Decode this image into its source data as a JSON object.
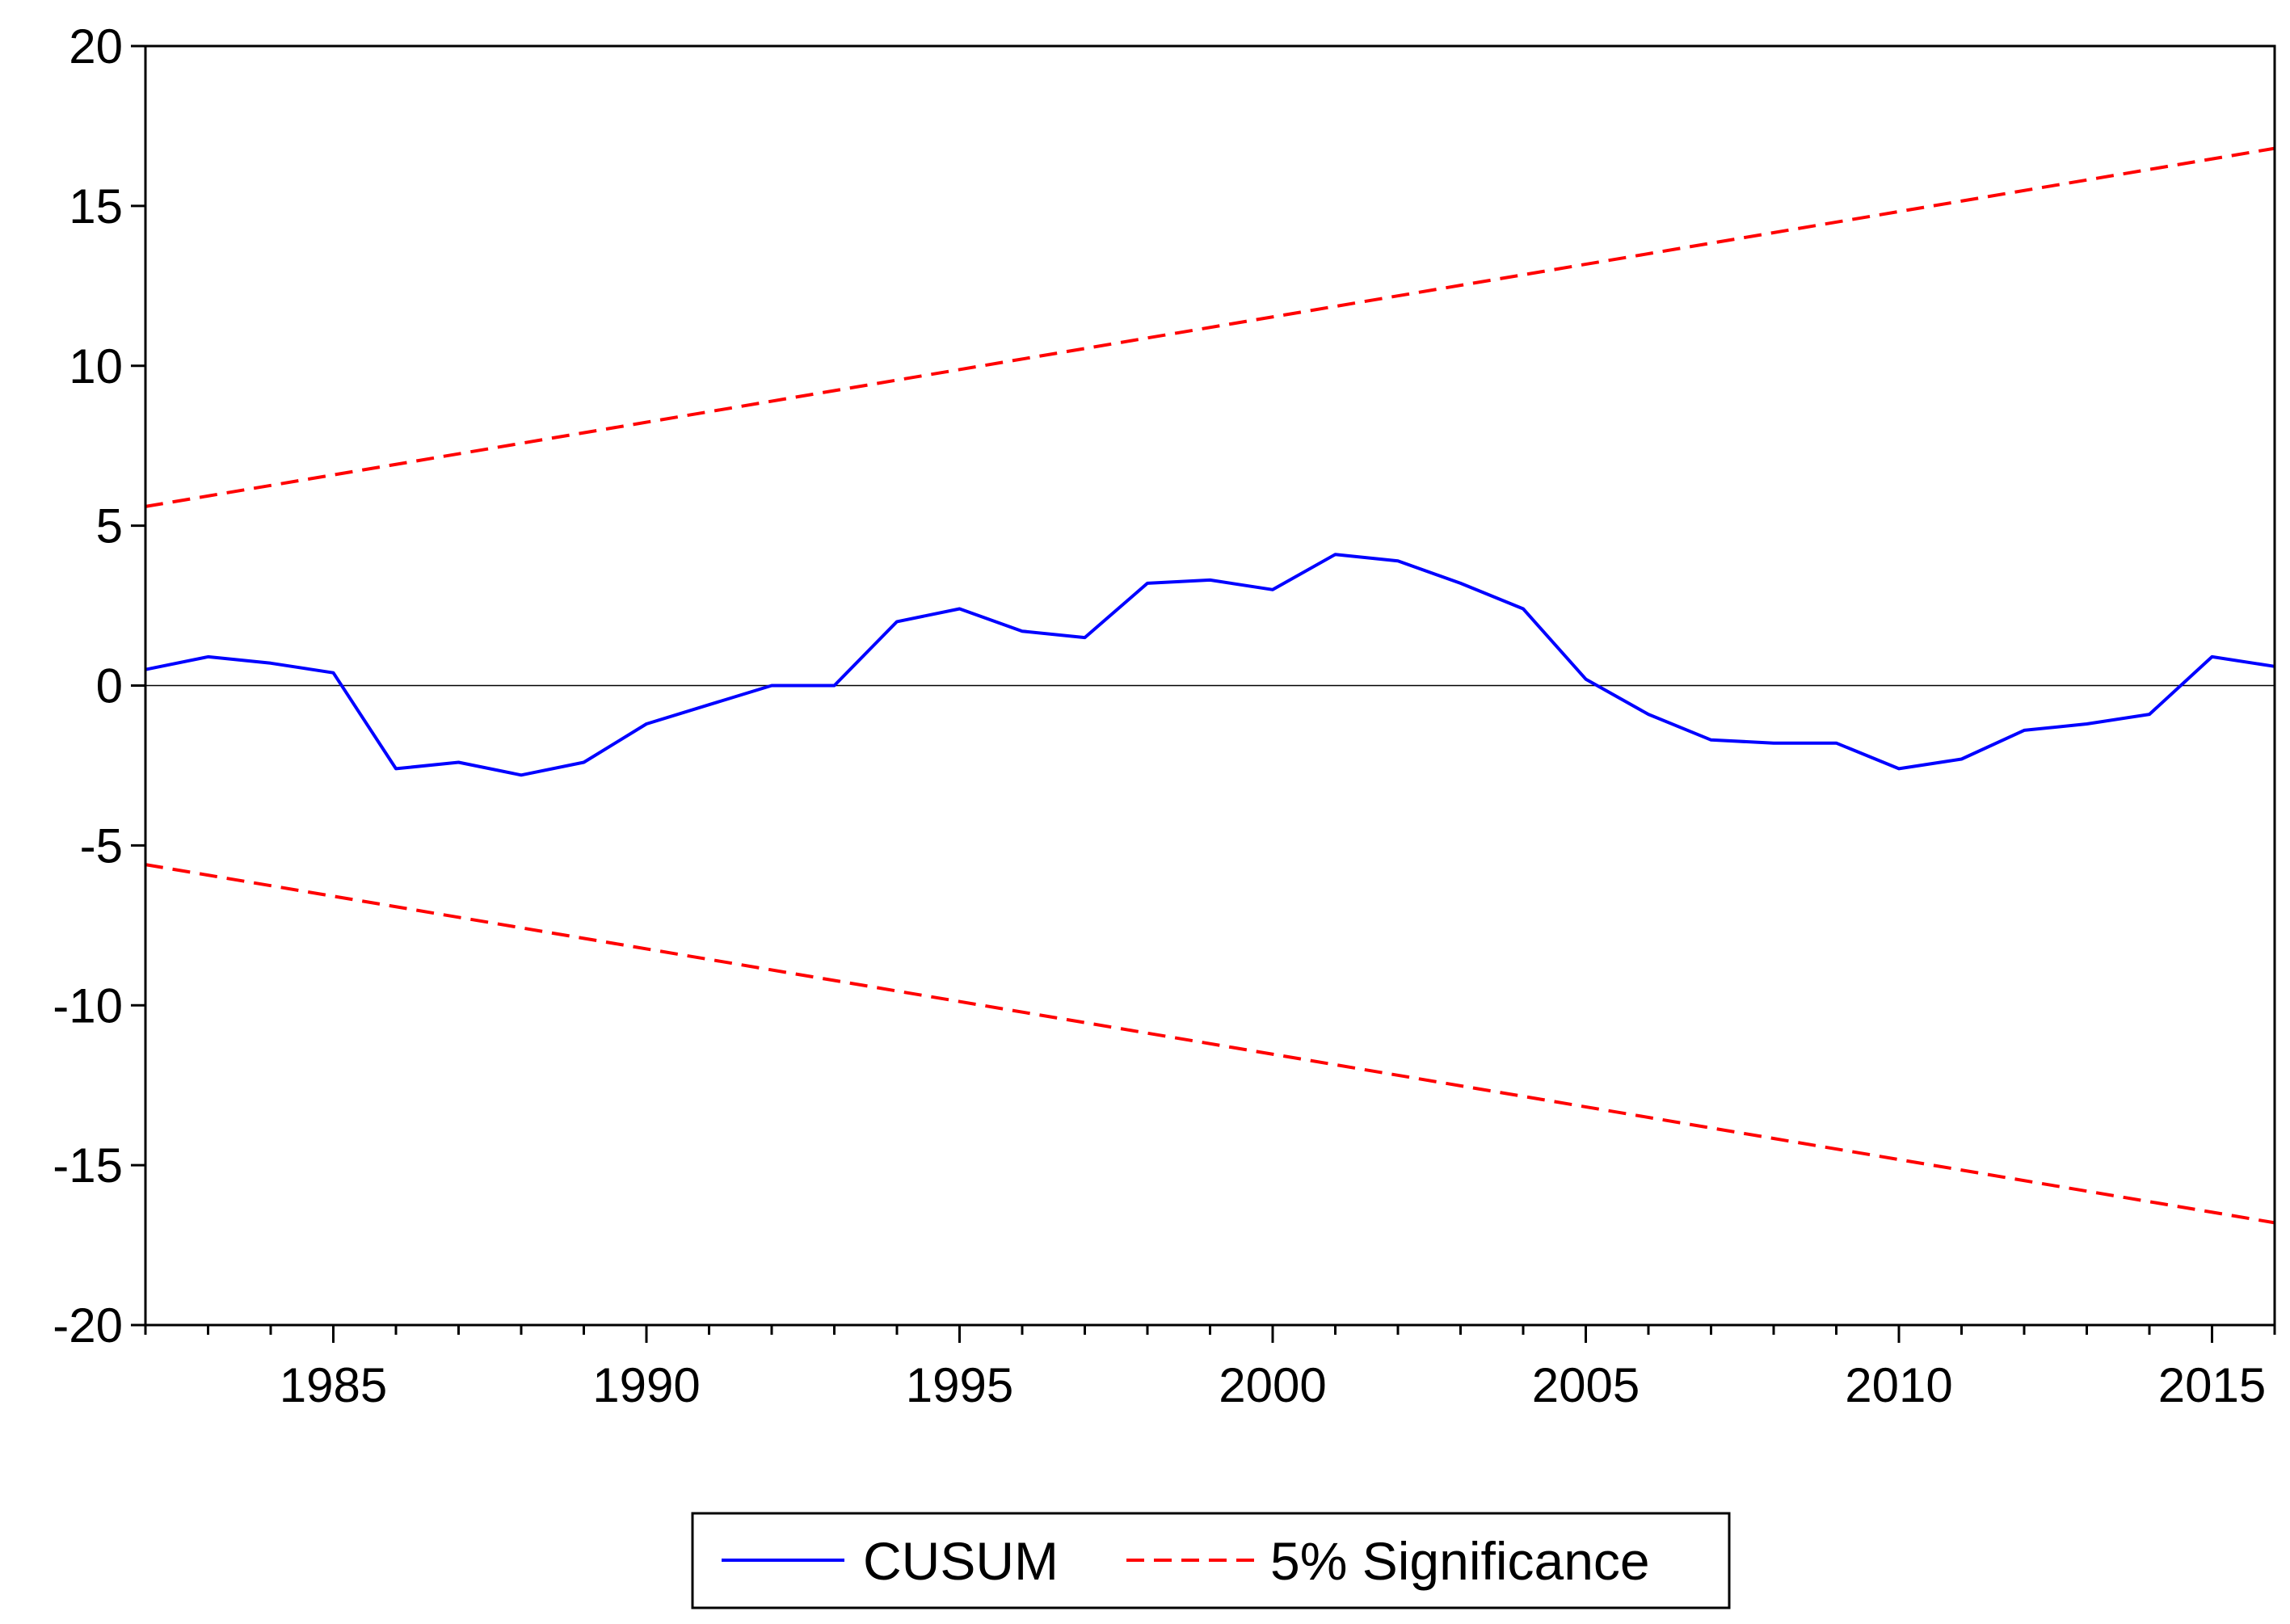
{
  "chart_data": {
    "type": "line",
    "title": "",
    "xlabel": "",
    "ylabel": "",
    "xlim": [
      1982,
      2016
    ],
    "ylim": [
      -20,
      20
    ],
    "x_ticks": [
      1985,
      1990,
      1995,
      2000,
      2005,
      2010,
      2015
    ],
    "y_ticks": [
      20,
      15,
      10,
      5,
      0,
      -5,
      -10,
      -15,
      -20
    ],
    "zero_line": true,
    "grid": false,
    "legend_position": "bottom-center",
    "x": [
      1982,
      1983,
      1984,
      1985,
      1986,
      1987,
      1988,
      1989,
      1990,
      1991,
      1992,
      1993,
      1994,
      1995,
      1996,
      1997,
      1998,
      1999,
      2000,
      2001,
      2002,
      2003,
      2004,
      2005,
      2006,
      2007,
      2008,
      2009,
      2010,
      2011,
      2012,
      2013,
      2014,
      2015,
      2016
    ],
    "series": [
      {
        "name": "CUSUM",
        "color": "#0000ff",
        "style": "solid",
        "values": [
          0.5,
          0.9,
          0.7,
          0.4,
          -2.6,
          -2.4,
          -2.8,
          -2.4,
          -1.2,
          -0.6,
          0.0,
          0.0,
          2.0,
          2.4,
          1.7,
          1.5,
          3.2,
          3.3,
          3.0,
          4.1,
          3.9,
          3.2,
          2.4,
          0.2,
          -0.9,
          -1.7,
          -1.8,
          -1.8,
          -2.6,
          -2.3,
          -1.4,
          -1.2,
          -0.9,
          0.9,
          0.6
        ]
      },
      {
        "name": "5% Significance",
        "color": "#ff0000",
        "style": "dashed",
        "x_range": [
          1982,
          2016
        ],
        "upper": [
          5.6,
          16.8
        ],
        "lower": [
          -5.6,
          -16.8
        ]
      }
    ]
  }
}
